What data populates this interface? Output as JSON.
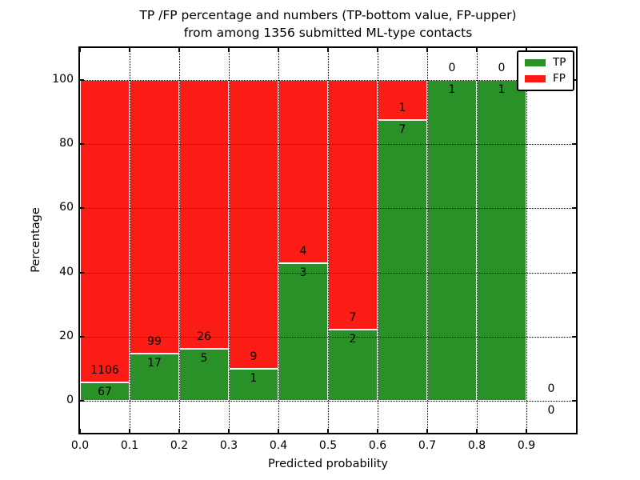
{
  "figure": {
    "title_line1": "TP /FP percentage and numbers (TP-bottom value, FP-upper)",
    "title_line2": "from among 1356 submitted ML-type contacts",
    "xlabel": "Predicted probability",
    "ylabel": "Percentage"
  },
  "legend": {
    "position": "upper right",
    "items": [
      {
        "label": "TP",
        "color": "#2a9128"
      },
      {
        "label": "FP",
        "color": "#fb1d15"
      }
    ]
  },
  "chart_data": {
    "type": "bar",
    "stacked": true,
    "title": "TP /FP percentage and numbers (TP-bottom value, FP-upper) from among 1356 submitted ML-type contacts",
    "xlabel": "Predicted probability",
    "ylabel": "Percentage",
    "xlim": [
      0.0,
      1.0
    ],
    "ylim": [
      -10,
      110
    ],
    "x_ticks": [
      0.0,
      0.1,
      0.2,
      0.3,
      0.4,
      0.5,
      0.6,
      0.7,
      0.8,
      0.9
    ],
    "x_tick_labels": [
      "0.0",
      "0.1",
      "0.2",
      "0.3",
      "0.4",
      "0.5",
      "0.6",
      "0.7",
      "0.8",
      "0.9"
    ],
    "y_ticks": [
      0,
      20,
      40,
      60,
      80,
      100
    ],
    "y_tick_labels": [
      "0",
      "20",
      "40",
      "60",
      "80",
      "100"
    ],
    "grid": true,
    "legend_position": "upper right",
    "bin_width": 0.1,
    "bin_starts": [
      0.0,
      0.1,
      0.2,
      0.3,
      0.4,
      0.5,
      0.6,
      0.7,
      0.8,
      0.9
    ],
    "series": [
      {
        "name": "TP",
        "color": "#2a9128",
        "counts": [
          67,
          17,
          5,
          1,
          3,
          2,
          7,
          1,
          1,
          0
        ]
      },
      {
        "name": "FP",
        "color": "#fb1d15",
        "counts": [
          1106,
          99,
          26,
          9,
          4,
          7,
          1,
          0,
          0,
          0
        ]
      }
    ],
    "bar_heights_note": "each bin normalized to 100%: TP% = TP/(TP+FP)*100, FP stacked above; annotated numbers are raw counts (TP below boundary, FP above)",
    "total_contacts": 1356
  }
}
